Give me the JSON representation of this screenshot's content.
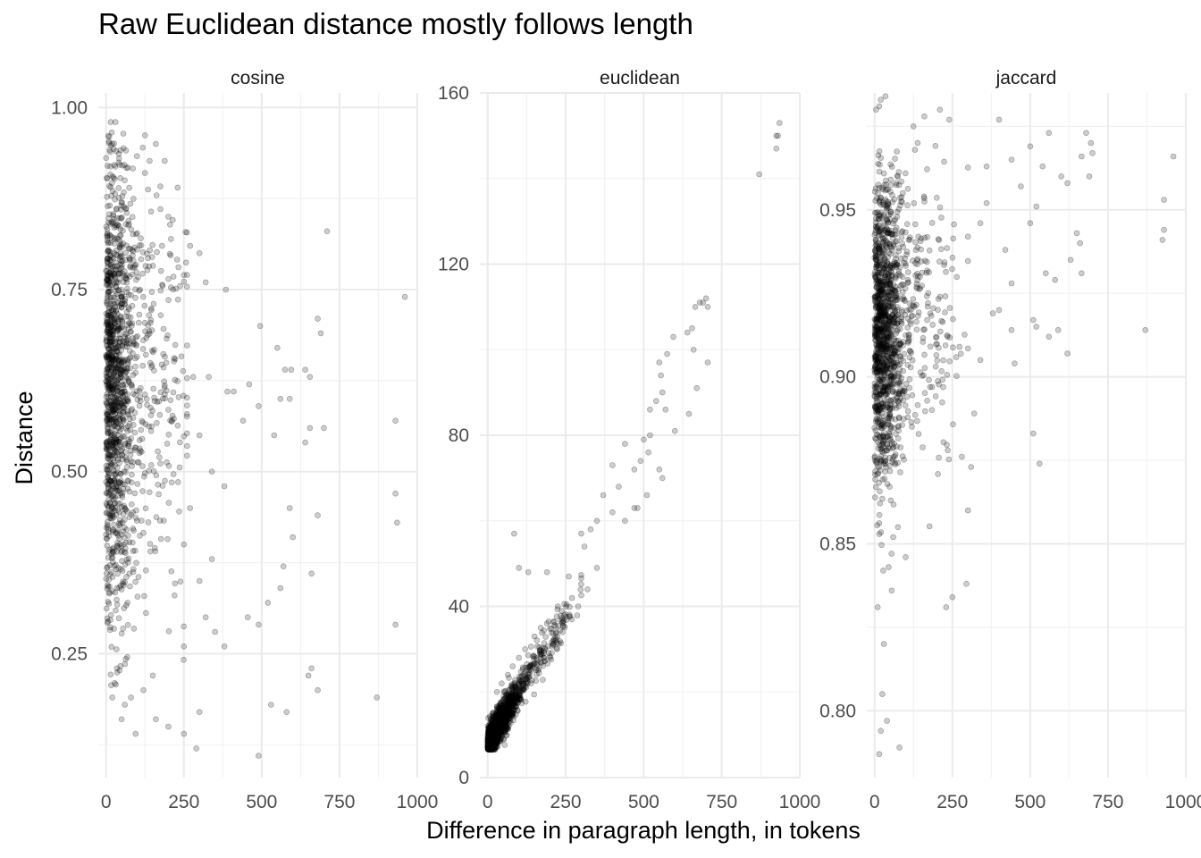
{
  "chart_data": {
    "type": "scatter",
    "title": "Raw Euclidean distance mostly follows length",
    "xlabel": "Difference in paragraph length, in tokens",
    "ylabel": "Distance",
    "grid": true,
    "point_color": "#000000",
    "point_alpha": 0.2,
    "panels": [
      {
        "name": "cosine",
        "xlim": [
          -25,
          1000
        ],
        "ylim": [
          0.08,
          1.02
        ],
        "x_ticks": [
          0,
          250,
          500,
          750,
          1000
        ],
        "x_tick_labels": [
          "0",
          "250",
          "500",
          "750",
          "1000"
        ],
        "y_ticks": [
          0.25,
          0.5,
          0.75,
          1.0
        ],
        "y_tick_labels": [
          "0.25",
          "0.50",
          "0.75",
          "1.00"
        ],
        "points": [
          [
            710,
            0.83
          ],
          [
            960,
            0.74
          ],
          [
            385,
            0.75
          ],
          [
            160,
            0.95
          ],
          [
            125,
            0.91
          ],
          [
            230,
            0.89
          ],
          [
            495,
            0.7
          ],
          [
            680,
            0.71
          ],
          [
            690,
            0.69
          ],
          [
            640,
            0.64
          ],
          [
            655,
            0.63
          ],
          [
            595,
            0.64
          ],
          [
            575,
            0.64
          ],
          [
            550,
            0.67
          ],
          [
            410,
            0.61
          ],
          [
            390,
            0.61
          ],
          [
            460,
            0.62
          ],
          [
            560,
            0.6
          ],
          [
            590,
            0.6
          ],
          [
            700,
            0.56
          ],
          [
            655,
            0.56
          ],
          [
            640,
            0.54
          ],
          [
            540,
            0.55
          ],
          [
            490,
            0.59
          ],
          [
            440,
            0.57
          ],
          [
            930,
            0.57
          ],
          [
            930,
            0.47
          ],
          [
            935,
            0.43
          ],
          [
            930,
            0.29
          ],
          [
            680,
            0.44
          ],
          [
            590,
            0.45
          ],
          [
            600,
            0.41
          ],
          [
            570,
            0.37
          ],
          [
            560,
            0.34
          ],
          [
            520,
            0.32
          ],
          [
            490,
            0.29
          ],
          [
            455,
            0.3
          ],
          [
            660,
            0.36
          ],
          [
            650,
            0.22
          ],
          [
            660,
            0.23
          ],
          [
            680,
            0.2
          ],
          [
            580,
            0.17
          ],
          [
            530,
            0.18
          ],
          [
            490,
            0.11
          ],
          [
            870,
            0.19
          ],
          [
            380,
            0.26
          ],
          [
            340,
            0.38
          ],
          [
            350,
            0.28
          ],
          [
            300,
            0.17
          ],
          [
            290,
            0.12
          ],
          [
            250,
            0.14
          ],
          [
            200,
            0.15
          ],
          [
            160,
            0.16
          ],
          [
            95,
            0.14
          ],
          [
            60,
            0.18
          ],
          [
            50,
            0.16
          ],
          [
            20,
            0.19
          ],
          [
            35,
            0.23
          ],
          [
            15,
            0.98
          ],
          [
            30,
            0.98
          ],
          [
            10,
            0.96
          ],
          [
            5,
            0.92
          ],
          [
            20,
            0.95
          ],
          [
            60,
            0.9
          ],
          [
            200,
            0.85
          ],
          [
            180,
            0.81
          ],
          [
            300,
            0.8
          ],
          [
            270,
            0.81
          ],
          [
            250,
            0.77
          ],
          [
            320,
            0.76
          ],
          [
            280,
            0.63
          ],
          [
            330,
            0.63
          ],
          [
            300,
            0.55
          ],
          [
            340,
            0.5
          ],
          [
            380,
            0.48
          ],
          [
            270,
            0.45
          ],
          [
            250,
            0.4
          ],
          [
            300,
            0.35
          ],
          [
            320,
            0.3
          ],
          [
            250,
            0.26
          ],
          [
            150,
            0.22
          ],
          [
            120,
            0.2
          ],
          [
            80,
            0.19
          ],
          [
            220,
            0.33
          ]
        ],
        "dense_band": {
          "x_max": 260,
          "y_range": [
            0.22,
            0.96
          ],
          "note": "thousands of overlapping points near x=0"
        }
      },
      {
        "name": "euclidean",
        "xlim": [
          -25,
          1000
        ],
        "ylim": [
          0,
          160
        ],
        "x_ticks": [
          0,
          250,
          500,
          750,
          1000
        ],
        "x_tick_labels": [
          "0",
          "250",
          "500",
          "750",
          "1000"
        ],
        "y_ticks": [
          0,
          40,
          80,
          120,
          160
        ],
        "y_tick_labels": [
          "0",
          "40",
          "80",
          "120",
          "160"
        ],
        "points": [
          [
            935,
            153
          ],
          [
            925,
            150
          ],
          [
            930,
            150
          ],
          [
            925,
            147
          ],
          [
            870,
            141
          ],
          [
            700,
            112
          ],
          [
            680,
            111
          ],
          [
            665,
            110
          ],
          [
            690,
            111
          ],
          [
            705,
            110
          ],
          [
            655,
            105
          ],
          [
            640,
            104
          ],
          [
            660,
            100
          ],
          [
            705,
            97
          ],
          [
            595,
            103
          ],
          [
            575,
            99
          ],
          [
            550,
            97
          ],
          [
            555,
            94
          ],
          [
            560,
            90
          ],
          [
            540,
            88
          ],
          [
            520,
            86
          ],
          [
            570,
            86
          ],
          [
            645,
            85
          ],
          [
            670,
            91
          ],
          [
            600,
            81
          ],
          [
            520,
            80
          ],
          [
            500,
            79
          ],
          [
            515,
            76
          ],
          [
            490,
            74
          ],
          [
            470,
            72
          ],
          [
            440,
            78
          ],
          [
            400,
            73
          ],
          [
            550,
            72
          ],
          [
            560,
            70
          ],
          [
            510,
            66
          ],
          [
            470,
            63
          ],
          [
            400,
            62
          ],
          [
            370,
            66
          ],
          [
            350,
            60
          ],
          [
            330,
            58
          ],
          [
            300,
            57
          ],
          [
            310,
            54
          ],
          [
            350,
            49
          ],
          [
            260,
            47
          ],
          [
            190,
            48
          ],
          [
            130,
            48
          ],
          [
            100,
            49
          ],
          [
            85,
            57
          ],
          [
            225,
            40
          ],
          [
            190,
            36
          ],
          [
            170,
            35
          ],
          [
            150,
            33
          ],
          [
            120,
            30
          ],
          [
            100,
            28
          ],
          [
            80,
            26
          ],
          [
            65,
            24
          ],
          [
            45,
            22
          ],
          [
            30,
            20
          ],
          [
            15,
            15
          ],
          [
            10,
            12
          ],
          [
            5,
            9
          ],
          [
            2,
            8
          ],
          [
            40,
            17
          ],
          [
            70,
            19
          ],
          [
            110,
            22
          ],
          [
            140,
            25
          ],
          [
            180,
            28
          ],
          [
            210,
            31
          ],
          [
            240,
            34
          ],
          [
            270,
            37
          ],
          [
            290,
            40
          ],
          [
            320,
            44
          ],
          [
            420,
            68
          ],
          [
            480,
            63
          ],
          [
            440,
            60
          ]
        ],
        "dense_band": {
          "x_max": 300,
          "y_range": [
            7,
            45
          ],
          "note": "tight linear band of thousands of points from origin"
        }
      },
      {
        "name": "jaccard",
        "xlim": [
          -25,
          1000
        ],
        "ylim": [
          0.78,
          0.985
        ],
        "x_ticks": [
          0,
          250,
          500,
          750,
          1000
        ],
        "x_tick_labels": [
          "0",
          "250",
          "500",
          "750",
          "1000"
        ],
        "y_ticks": [
          0.8,
          0.85,
          0.9,
          0.95
        ],
        "y_tick_labels": [
          "0.80",
          "0.85",
          "0.90",
          "0.95"
        ],
        "points": [
          [
            695,
            0.97
          ],
          [
            700,
            0.967
          ],
          [
            680,
            0.973
          ],
          [
            690,
            0.96
          ],
          [
            665,
            0.966
          ],
          [
            960,
            0.966
          ],
          [
            930,
            0.953
          ],
          [
            930,
            0.944
          ],
          [
            925,
            0.941
          ],
          [
            870,
            0.914
          ],
          [
            500,
            0.969
          ],
          [
            560,
            0.973
          ],
          [
            540,
            0.963
          ],
          [
            600,
            0.96
          ],
          [
            620,
            0.958
          ],
          [
            520,
            0.951
          ],
          [
            500,
            0.946
          ],
          [
            470,
            0.957
          ],
          [
            440,
            0.965
          ],
          [
            400,
            0.977
          ],
          [
            360,
            0.963
          ],
          [
            550,
            0.931
          ],
          [
            580,
            0.929
          ],
          [
            650,
            0.943
          ],
          [
            660,
            0.94
          ],
          [
            665,
            0.931
          ],
          [
            630,
            0.935
          ],
          [
            510,
            0.917
          ],
          [
            520,
            0.915
          ],
          [
            560,
            0.912
          ],
          [
            590,
            0.914
          ],
          [
            620,
            0.907
          ],
          [
            400,
            0.92
          ],
          [
            440,
            0.914
          ],
          [
            450,
            0.904
          ],
          [
            510,
            0.883
          ],
          [
            530,
            0.874
          ],
          [
            440,
            0.928
          ],
          [
            420,
            0.938
          ],
          [
            380,
            0.919
          ],
          [
            340,
            0.905
          ],
          [
            320,
            0.889
          ],
          [
            310,
            0.873
          ],
          [
            300,
            0.86
          ],
          [
            295,
            0.838
          ],
          [
            250,
            0.834
          ],
          [
            230,
            0.831
          ],
          [
            100,
            0.846
          ],
          [
            75,
            0.855
          ],
          [
            60,
            0.852
          ],
          [
            20,
            0.794
          ],
          [
            15,
            0.787
          ],
          [
            80,
            0.789
          ],
          [
            40,
            0.797
          ],
          [
            25,
            0.805
          ],
          [
            30,
            0.82
          ],
          [
            10,
            0.831
          ],
          [
            45,
            0.843
          ],
          [
            55,
            0.836
          ],
          [
            5,
            0.98
          ],
          [
            20,
            0.983
          ],
          [
            35,
            0.984
          ],
          [
            15,
            0.981
          ],
          [
            210,
            0.98
          ],
          [
            240,
            0.977
          ],
          [
            125,
            0.975
          ],
          [
            160,
            0.978
          ],
          [
            360,
            0.952
          ],
          [
            340,
            0.946
          ],
          [
            300,
            0.942
          ]
        ],
        "dense_band": {
          "x_max": 300,
          "y_range": [
            0.84,
            0.975
          ],
          "note": "dense cloud concentrated near x=0"
        }
      }
    ]
  }
}
